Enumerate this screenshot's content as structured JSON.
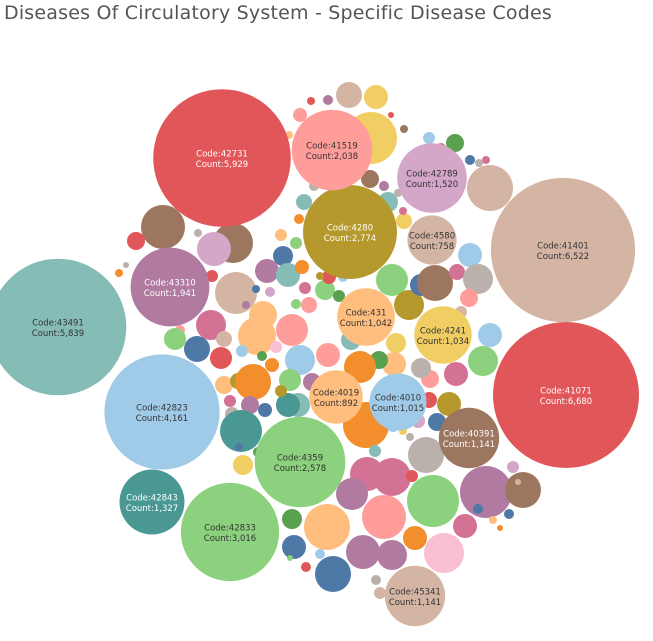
{
  "chart_data": {
    "type": "packed-bubble",
    "title": "Diseases Of Circulatory System - Specific Disease Codes",
    "label_prefix_code": "Code:",
    "label_prefix_count": "Count:",
    "colors": {
      "red": "#e15759",
      "teal": "#86bcb6",
      "lightblue": "#a0cbe8",
      "green": "#8cd17d",
      "tan": "#d4b5a4",
      "pink": "#ff9d9a",
      "olive": "#b6992d",
      "orange": "#ffbe7d",
      "yellow": "#f1ce63",
      "purple": "#b07aa1",
      "brown": "#9d7660",
      "lightpurple": "#d4a6c8",
      "darkorange": "#f28e2b",
      "darkteal": "#499894",
      "blue": "#4e79a7",
      "rose": "#d37295",
      "grey": "#bab0ac",
      "darkgreen": "#59a14f",
      "lightpink": "#fabfd2"
    },
    "bubbles": [
      {
        "code": "41071",
        "count": "6,680",
        "value": 6680,
        "color": "red"
      },
      {
        "code": "41401",
        "count": "6,522",
        "value": 6522,
        "color": "tan"
      },
      {
        "code": "42731",
        "count": "5,929",
        "value": 5929,
        "color": "red"
      },
      {
        "code": "43491",
        "count": "5,839",
        "value": 5839,
        "color": "teal"
      },
      {
        "code": "42823",
        "count": "4,161",
        "value": 4161,
        "color": "lightblue"
      },
      {
        "code": "42833",
        "count": "3,016",
        "value": 3016,
        "color": "green"
      },
      {
        "code": "4280",
        "count": "2,774",
        "value": 2774,
        "color": "olive"
      },
      {
        "code": "4359",
        "count": "2,578",
        "value": 2578,
        "color": "green"
      },
      {
        "code": "41519",
        "count": "2,038",
        "value": 2038,
        "color": "pink"
      },
      {
        "code": "43310",
        "count": "1,941",
        "value": 1941,
        "color": "purple"
      },
      {
        "code": "42789",
        "count": "1,520",
        "value": 1520,
        "color": "lightpurple"
      },
      {
        "code": "42843",
        "count": "1,327",
        "value": 1327,
        "color": "darkteal"
      },
      {
        "code": "40391",
        "count": "1,141",
        "value": 1141,
        "color": "brown"
      },
      {
        "code": "45341",
        "count": "1,141",
        "value": 1141,
        "color": "tan"
      },
      {
        "code": "431",
        "count": "1,042",
        "value": 1042,
        "color": "orange"
      },
      {
        "code": "4241",
        "count": "1,034",
        "value": 1034,
        "color": "yellow"
      },
      {
        "code": "4010",
        "count": "1,015",
        "value": 1015,
        "color": "lightblue"
      },
      {
        "code": "4019",
        "count": "892",
        "value": 892,
        "color": "orange"
      },
      {
        "code": "4580",
        "count": "758",
        "value": 758,
        "color": "tan"
      }
    ],
    "unlabeled_bubble_colors": [
      "yellow",
      "tan",
      "teal",
      "brown",
      "lightpurple",
      "red",
      "lightblue",
      "grey",
      "orange",
      "darkorange",
      "green",
      "pink",
      "blue",
      "rose",
      "purple",
      "darkgreen",
      "olive",
      "lightpink",
      "darkteal"
    ]
  }
}
